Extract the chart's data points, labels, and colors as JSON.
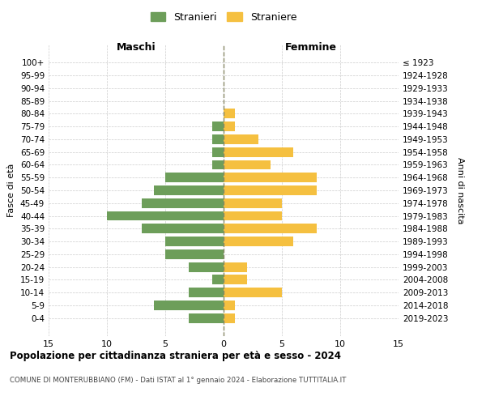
{
  "age_groups": [
    "100+",
    "95-99",
    "90-94",
    "85-89",
    "80-84",
    "75-79",
    "70-74",
    "65-69",
    "60-64",
    "55-59",
    "50-54",
    "45-49",
    "40-44",
    "35-39",
    "30-34",
    "25-29",
    "20-24",
    "15-19",
    "10-14",
    "5-9",
    "0-4"
  ],
  "birth_years": [
    "≤ 1923",
    "1924-1928",
    "1929-1933",
    "1934-1938",
    "1939-1943",
    "1944-1948",
    "1949-1953",
    "1954-1958",
    "1959-1963",
    "1964-1968",
    "1969-1973",
    "1974-1978",
    "1979-1983",
    "1984-1988",
    "1989-1993",
    "1994-1998",
    "1999-2003",
    "2004-2008",
    "2009-2013",
    "2014-2018",
    "2019-2023"
  ],
  "maschi": [
    0,
    0,
    0,
    0,
    0,
    1,
    1,
    1,
    1,
    5,
    6,
    7,
    10,
    7,
    5,
    5,
    3,
    1,
    3,
    6,
    3
  ],
  "femmine": [
    0,
    0,
    0,
    0,
    1,
    1,
    3,
    6,
    4,
    8,
    8,
    5,
    5,
    8,
    6,
    0,
    2,
    2,
    5,
    1,
    1
  ],
  "maschi_color": "#6d9e5a",
  "femmine_color": "#f5c040",
  "center_line_color": "#888866",
  "grid_color": "#cccccc",
  "title": "Popolazione per cittadinanza straniera per età e sesso - 2024",
  "subtitle": "COMUNE DI MONTERUBBIANO (FM) - Dati ISTAT al 1° gennaio 2024 - Elaborazione TUTTITALIA.IT",
  "xlabel_left": "Maschi",
  "xlabel_right": "Femmine",
  "ylabel_left": "Fasce di età",
  "ylabel_right": "Anni di nascita",
  "legend_stranieri": "Stranieri",
  "legend_straniere": "Straniere",
  "xlim": 15,
  "background_color": "#ffffff"
}
